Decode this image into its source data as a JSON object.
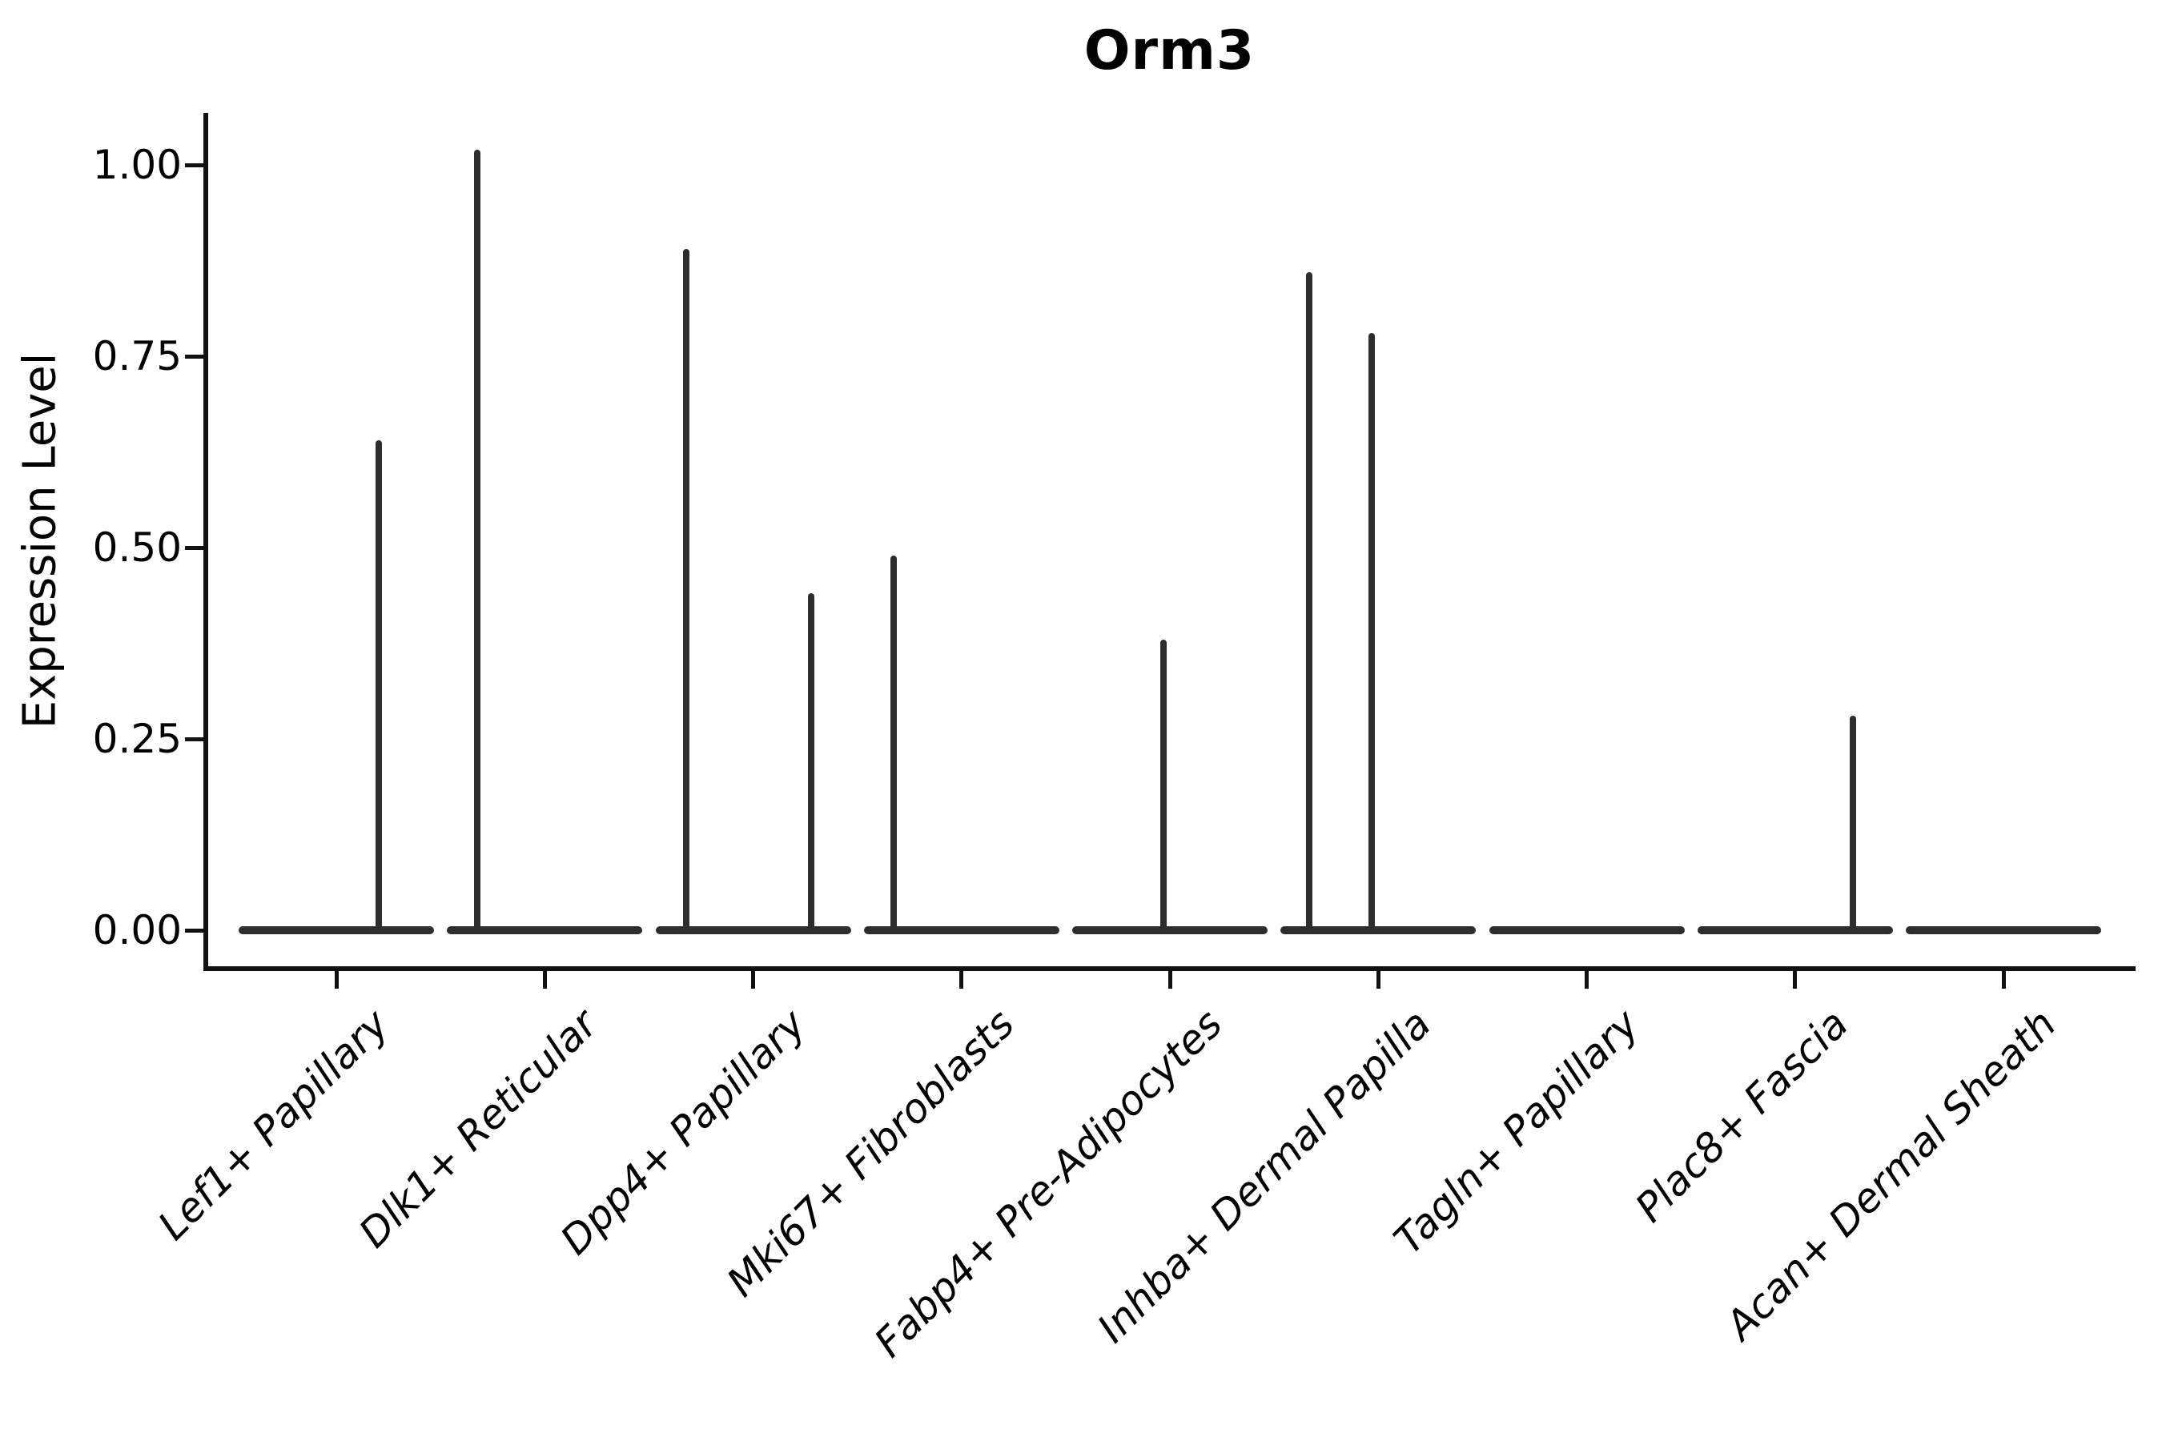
{
  "figure": {
    "title": "Orm3",
    "ylabel": "Expression Level"
  },
  "chart_data": {
    "type": "violin",
    "title": "Orm3",
    "xlabel": "",
    "ylabel": "Expression Level",
    "grid": false,
    "legend": "none",
    "background": "#ffffff",
    "violin_color": "#2d2d2d",
    "axis_color": "#111111",
    "ylim": [
      -0.05,
      1.07
    ],
    "yticks": [
      1.0,
      0.75,
      0.5,
      0.25,
      0.0
    ],
    "ytick_labels": [
      "1.00",
      "0.75",
      "0.50",
      "0.25",
      "0.00"
    ],
    "categories": [
      "Lef1+ Papillary",
      "Dlk1+ Reticular",
      "Dpp4+ Papillary",
      "Mki67+ Fibroblasts",
      "Fabp4+ Pre-Adipocytes",
      "Inhba+ Dermal Papilla",
      "Tagln+ Papillary",
      "Plac8+ Fascia",
      "Acan+ Dermal Sheath"
    ],
    "description": "Violin plot of Orm3 expression; every cluster has a flat density bar at expression 0, and sparse positive cells appear as thin vertical spikes rising to the listed maximum expression value.",
    "violins": [
      {
        "category": "Lef1+ Papillary",
        "base_at_zero": true,
        "spikes": [
          {
            "x_offset": 53,
            "max": 0.64
          }
        ]
      },
      {
        "category": "Dlk1+ Reticular",
        "base_at_zero": true,
        "spikes": [
          {
            "x_offset": -84,
            "max": 1.02
          }
        ]
      },
      {
        "category": "Dpp4+ Papillary",
        "base_at_zero": true,
        "spikes": [
          {
            "x_offset": -84,
            "max": 0.89
          },
          {
            "x_offset": 72,
            "max": 0.44
          }
        ]
      },
      {
        "category": "Mki67+ Fibroblasts",
        "base_at_zero": true,
        "spikes": [
          {
            "x_offset": -85,
            "max": 0.49
          }
        ]
      },
      {
        "category": "Fabp4+ Pre-Adipocytes",
        "base_at_zero": true,
        "spikes": [
          {
            "x_offset": -8,
            "max": 0.38
          }
        ]
      },
      {
        "category": "Inhba+ Dermal Papilla",
        "base_at_zero": true,
        "spikes": [
          {
            "x_offset": -86,
            "max": 0.86
          },
          {
            "x_offset": -8,
            "max": 0.78
          }
        ]
      },
      {
        "category": "Tagln+ Papillary",
        "base_at_zero": true,
        "spikes": []
      },
      {
        "category": "Plac8+ Fascia",
        "base_at_zero": true,
        "spikes": [
          {
            "x_offset": 72,
            "max": 0.28
          }
        ]
      },
      {
        "category": "Acan+ Dermal Sheath",
        "base_at_zero": true,
        "spikes": []
      }
    ]
  }
}
